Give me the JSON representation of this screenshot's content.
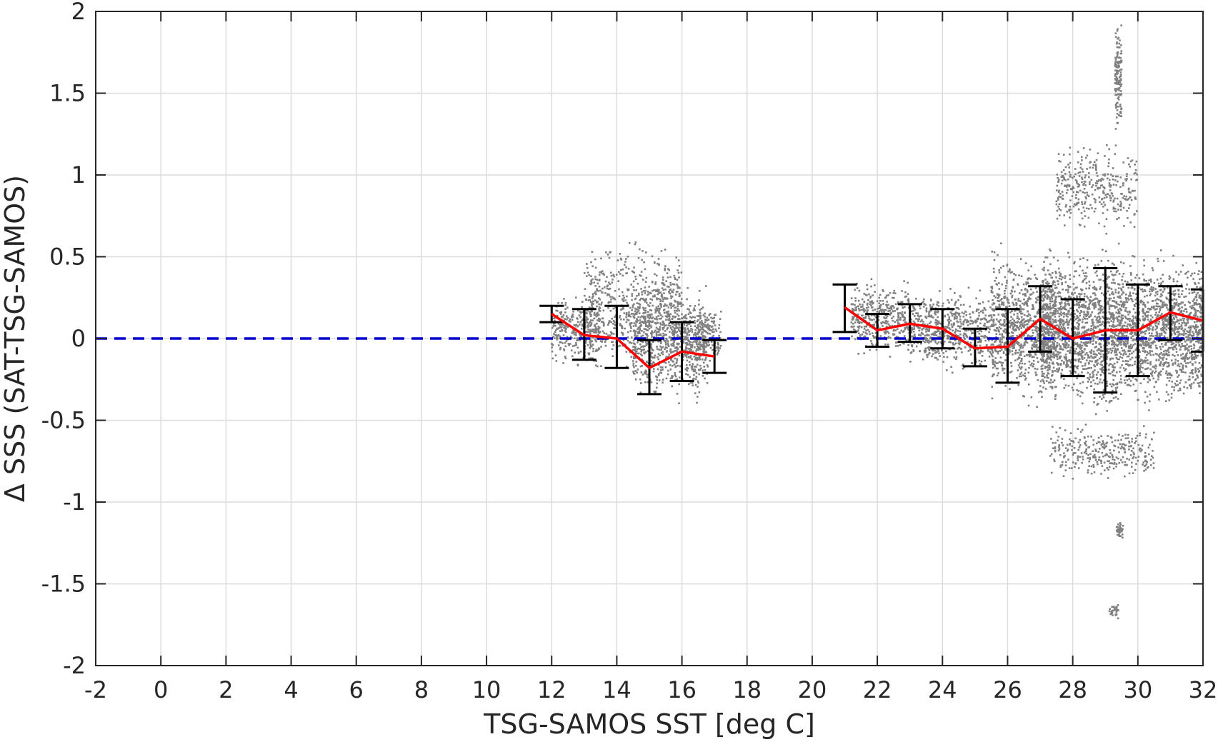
{
  "chart_data": {
    "type": "scatter",
    "xlabel": "TSG-SAMOS SST [deg C]",
    "ylabel": "Δ SSS (SAT-TSG-SAMOS)",
    "xlim": [
      -2,
      32
    ],
    "ylim": [
      -2,
      2
    ],
    "xticks": [
      -2,
      0,
      2,
      4,
      6,
      8,
      10,
      12,
      14,
      16,
      18,
      20,
      22,
      24,
      26,
      28,
      30,
      32
    ],
    "yticks": [
      -2,
      -1.5,
      -1,
      -0.5,
      0,
      0.5,
      1,
      1.5,
      2
    ],
    "xtick_labels": [
      "-2",
      "0",
      "2",
      "4",
      "6",
      "8",
      "10",
      "12",
      "14",
      "16",
      "18",
      "20",
      "22",
      "24",
      "26",
      "28",
      "30",
      "32"
    ],
    "ytick_labels": [
      "-2",
      "-1.5",
      "-1",
      "-0.5",
      "0",
      "0.5",
      "1",
      "1.5",
      "2"
    ],
    "grid": true,
    "colors": {
      "scatter": "#808080",
      "mean_line": "#ff0000",
      "error_bars": "#000000",
      "zero_line": "#0000cc",
      "grid": "#dcdcdc",
      "axes": "#262626"
    },
    "reference_line": {
      "y": 0,
      "style": "dashed"
    },
    "mean_curve": {
      "segments": [
        {
          "x": [
            12,
            13,
            14,
            15,
            16,
            17
          ],
          "y": [
            0.15,
            0.02,
            0.0,
            -0.18,
            -0.08,
            -0.11
          ]
        },
        {
          "x": [
            21,
            22,
            23,
            24,
            25,
            26,
            27,
            28,
            29,
            30,
            31,
            32
          ],
          "y": [
            0.19,
            0.05,
            0.09,
            0.06,
            -0.06,
            -0.05,
            0.12,
            0.0,
            0.05,
            0.05,
            0.16,
            0.11
          ]
        }
      ]
    },
    "error_bars": [
      {
        "x": 12,
        "low": 0.1,
        "high": 0.2
      },
      {
        "x": 13,
        "low": -0.13,
        "high": 0.18
      },
      {
        "x": 14,
        "low": -0.18,
        "high": 0.2
      },
      {
        "x": 15,
        "low": -0.34,
        "high": -0.01
      },
      {
        "x": 16,
        "low": -0.26,
        "high": 0.1
      },
      {
        "x": 17,
        "low": -0.21,
        "high": -0.01
      },
      {
        "x": 21,
        "low": 0.04,
        "high": 0.33
      },
      {
        "x": 22,
        "low": -0.05,
        "high": 0.15
      },
      {
        "x": 23,
        "low": -0.02,
        "high": 0.21
      },
      {
        "x": 24,
        "low": -0.06,
        "high": 0.18
      },
      {
        "x": 25,
        "low": -0.17,
        "high": 0.06
      },
      {
        "x": 26,
        "low": -0.27,
        "high": 0.18
      },
      {
        "x": 27,
        "low": -0.08,
        "high": 0.32
      },
      {
        "x": 28,
        "low": -0.23,
        "high": 0.24
      },
      {
        "x": 29,
        "low": -0.33,
        "high": 0.43
      },
      {
        "x": 30,
        "low": -0.23,
        "high": 0.33
      },
      {
        "x": 31,
        "low": -0.01,
        "high": 0.32
      },
      {
        "x": 32,
        "low": -0.08,
        "high": 0.3
      }
    ],
    "scatter_clusters": [
      {
        "x_range": [
          12.0,
          13.5
        ],
        "y_range": [
          -0.2,
          0.3
        ],
        "count": 300
      },
      {
        "x_range": [
          13.0,
          16.0
        ],
        "y_range": [
          -0.3,
          0.65
        ],
        "count": 700
      },
      {
        "x_range": [
          14.5,
          16.8
        ],
        "y_range": [
          -0.45,
          0.4
        ],
        "count": 700
      },
      {
        "x_range": [
          16.0,
          17.2
        ],
        "y_range": [
          -0.2,
          0.25
        ],
        "count": 200
      },
      {
        "x_range": [
          21.2,
          23.0
        ],
        "y_range": [
          -0.15,
          0.4
        ],
        "count": 400
      },
      {
        "x_range": [
          23.0,
          25.5
        ],
        "y_range": [
          -0.25,
          0.35
        ],
        "count": 600
      },
      {
        "x_range": [
          25.5,
          27.5
        ],
        "y_range": [
          -0.45,
          0.6
        ],
        "count": 900
      },
      {
        "x_range": [
          27.0,
          32.0
        ],
        "y_range": [
          -0.5,
          0.6
        ],
        "count": 2800
      },
      {
        "x_range": [
          27.5,
          30.0
        ],
        "y_range": [
          0.6,
          1.25
        ],
        "count": 350
      },
      {
        "x_range": [
          27.3,
          30.5
        ],
        "y_range": [
          -0.9,
          -0.5
        ],
        "count": 300
      },
      {
        "x_range": [
          29.3,
          29.5
        ],
        "y_range": [
          1.2,
          2.0
        ],
        "count": 150
      },
      {
        "x_range": [
          29.35,
          29.55
        ],
        "y_range": [
          -1.25,
          -1.1
        ],
        "count": 40
      },
      {
        "x_range": [
          29.1,
          29.4
        ],
        "y_range": [
          -1.73,
          -1.6
        ],
        "count": 30
      }
    ]
  }
}
